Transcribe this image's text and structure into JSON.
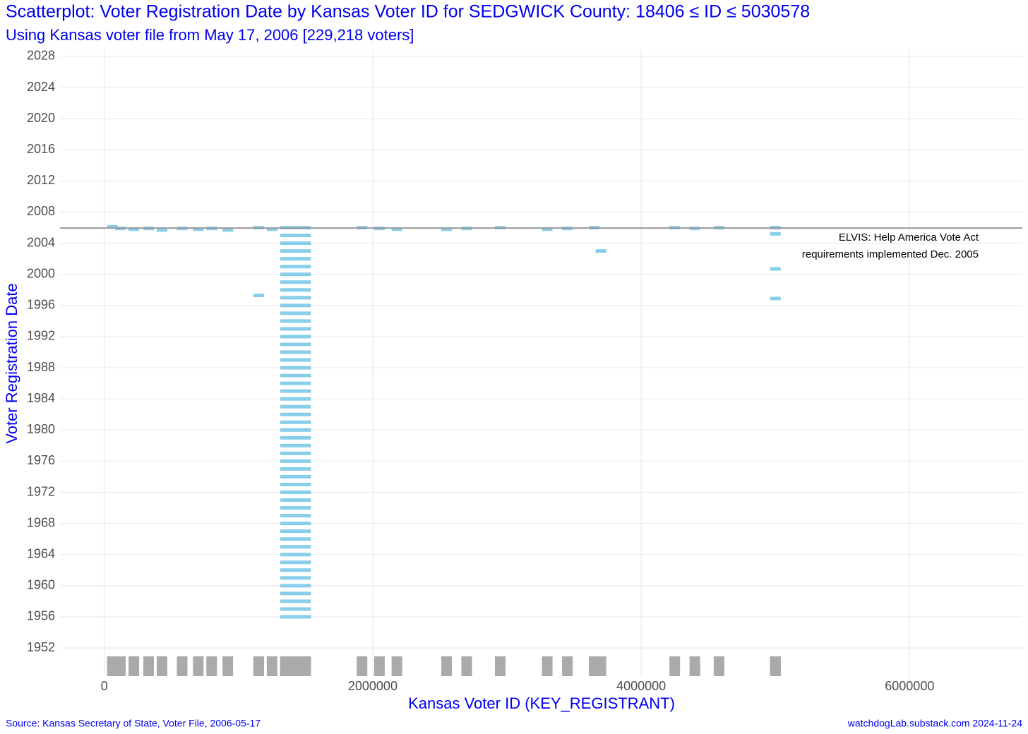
{
  "chart_data": {
    "type": "scatter",
    "title": "Scatterplot: Voter Registration Date by Kansas Voter ID for SEDGWICK County: 18406 ≤ ID ≤ 5030578",
    "subtitle": "Using Kansas voter file from May 17, 2006 [229,218 voters]",
    "x_label": "Kansas Voter ID (KEY_REGISTRANT)",
    "y_label": "Voter Registration Date",
    "source": "Source: Kansas Secretary of State, Voter File, 2006-05-17",
    "credit": "watchdogLab.substack.com 2024-11-24",
    "annotation": [
      "ELVIS:  Help America Vote Act",
      "requirements implemented Dec. 2005"
    ],
    "reference_line": 2005.95,
    "reference_color": "#999999",
    "color": "#87ceeb",
    "rug": true,
    "rug_color": "#aaaaaa",
    "grid": true,
    "xlim": [
      -330000,
      6840000
    ],
    "ylim": [
      1948.2,
      2028.9
    ],
    "xticks": [
      0,
      2000000,
      4000000,
      6000000
    ],
    "yticks": [
      1952,
      1956,
      1960,
      1964,
      1968,
      1972,
      1976,
      1980,
      1984,
      1988,
      1992,
      1996,
      2000,
      2004,
      2008,
      2012,
      2016,
      2020,
      2024,
      2028
    ],
    "x": [
      1350000,
      1350000,
      1350000,
      1350000,
      1350000,
      1350000,
      1350000,
      1350000,
      1350000,
      1350000,
      1350000,
      1350000,
      1350000,
      1350000,
      1350000,
      1350000,
      1350000,
      1350000,
      1350000,
      1350000,
      1350000,
      1350000,
      1350000,
      1350000,
      1350000,
      1350000,
      1350000,
      1350000,
      1350000,
      1350000,
      1350000,
      1350000,
      1350000,
      1350000,
      1350000,
      1350000,
      1350000,
      1350000,
      1350000,
      1350000,
      1350000,
      1350000,
      1350000,
      1350000,
      1350000,
      1350000,
      1350000,
      1350000,
      1350000,
      1350000,
      1350000,
      1425000,
      1425000,
      1425000,
      1425000,
      1425000,
      1425000,
      1425000,
      1425000,
      1425000,
      1425000,
      1425000,
      1425000,
      1425000,
      1425000,
      1425000,
      1425000,
      1425000,
      1425000,
      1425000,
      1425000,
      1425000,
      1425000,
      1425000,
      1425000,
      1425000,
      1425000,
      1425000,
      1425000,
      1425000,
      1425000,
      1425000,
      1425000,
      1425000,
      1425000,
      1425000,
      1425000,
      1425000,
      1425000,
      1425000,
      1425000,
      1425000,
      1425000,
      1425000,
      1425000,
      1425000,
      1425000,
      1425000,
      1425000,
      1425000,
      1425000,
      1425000,
      1500000,
      1500000,
      1500000,
      1500000,
      1500000,
      1500000,
      1500000,
      1500000,
      1500000,
      1500000,
      1500000,
      1500000,
      1500000,
      1500000,
      1500000,
      1500000,
      1500000,
      1500000,
      1500000,
      1500000,
      1500000,
      1500000,
      1500000,
      1500000,
      1500000,
      1500000,
      1500000,
      1500000,
      1500000,
      1500000,
      1500000,
      1500000,
      1500000,
      1500000,
      1500000,
      1500000,
      1500000,
      1500000,
      1500000,
      1500000,
      1500000,
      1500000,
      1500000,
      1500000,
      1500000,
      1500000,
      1500000,
      1500000,
      1500000,
      1500000,
      1500000,
      60000,
      120000,
      220000,
      330000,
      430000,
      580000,
      700000,
      800000,
      920000,
      1150000,
      1250000,
      1920000,
      2050000,
      2180000,
      2550000,
      2700000,
      2950000,
      3300000,
      3450000,
      3650000,
      3700000,
      1150000,
      4250000,
      4400000,
      4580000,
      5000000,
      5000000,
      5000000,
      5000000
    ],
    "y": [
      1956,
      1957,
      1958,
      1959,
      1960,
      1961,
      1962,
      1963,
      1964,
      1965,
      1966,
      1967,
      1968,
      1969,
      1970,
      1971,
      1972,
      1973,
      1974,
      1975,
      1976,
      1977,
      1978,
      1979,
      1980,
      1981,
      1982,
      1983,
      1984,
      1985,
      1986,
      1987,
      1988,
      1989,
      1990,
      1991,
      1992,
      1993,
      1994,
      1995,
      1996,
      1997,
      1998,
      1999,
      2000,
      2001,
      2002,
      2003,
      2004,
      2005,
      2006,
      1956,
      1957,
      1958,
      1959,
      1960,
      1961,
      1962,
      1963,
      1964,
      1965,
      1966,
      1967,
      1968,
      1969,
      1970,
      1971,
      1972,
      1973,
      1974,
      1975,
      1976,
      1977,
      1978,
      1979,
      1980,
      1981,
      1982,
      1983,
      1984,
      1985,
      1986,
      1987,
      1988,
      1989,
      1990,
      1991,
      1992,
      1993,
      1994,
      1995,
      1996,
      1997,
      1998,
      1999,
      2000,
      2001,
      2002,
      2003,
      2004,
      2005,
      2006,
      1956,
      1957,
      1958,
      1959,
      1960,
      1961,
      1962,
      1963,
      1964,
      1965,
      1966,
      1967,
      1968,
      1969,
      1970,
      1971,
      1972,
      1973,
      1974,
      1975,
      1976,
      1977,
      1978,
      1979,
      1980,
      1981,
      1982,
      1983,
      1984,
      1985,
      1986,
      1987,
      1988,
      1989,
      1990,
      1991,
      1992,
      1993,
      1994,
      1995,
      1996,
      1997,
      1998,
      1999,
      2000,
      2001,
      2002,
      2003,
      2004,
      2005,
      2006,
      2006.1,
      2005.9,
      2005.8,
      2005.9,
      2005.7,
      2005.9,
      2005.8,
      2005.9,
      2005.7,
      2006,
      2005.8,
      2006,
      2005.9,
      2005.8,
      2005.8,
      2005.9,
      2006,
      2005.8,
      2005.9,
      2006,
      2003,
      1997.3,
      2006,
      2005.9,
      2006,
      2006,
      2005.2,
      2000.7,
      1996.9
    ]
  }
}
